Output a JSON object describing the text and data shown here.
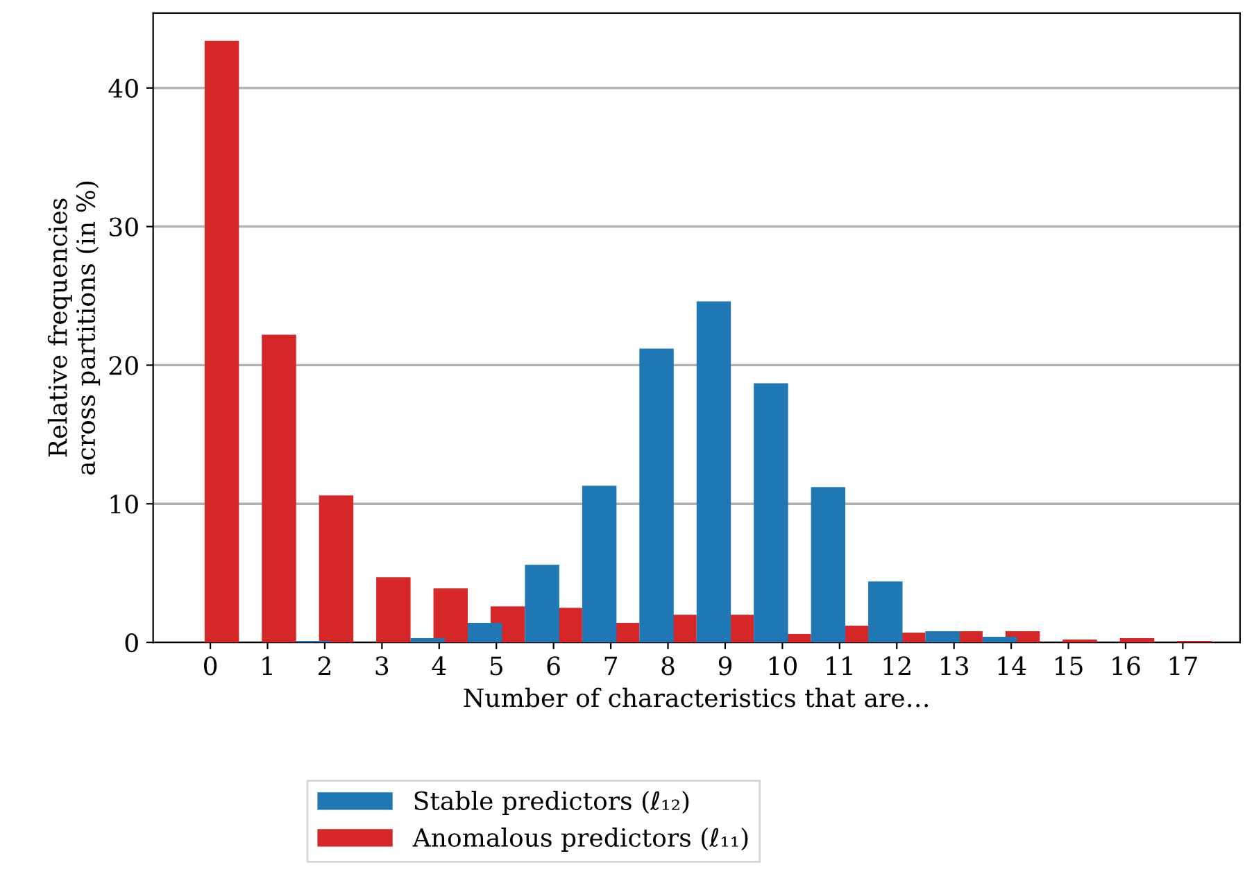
{
  "chart_data": {
    "type": "bar",
    "xlabel": "Number of characteristics that are…",
    "ylabel": "Relative frequencies\nacross partitions (in %)",
    "categories": [
      "0",
      "1",
      "2",
      "3",
      "4",
      "5",
      "6",
      "7",
      "8",
      "9",
      "10",
      "11",
      "12",
      "13",
      "14",
      "15",
      "16",
      "17"
    ],
    "series": [
      {
        "name": "Stable predictors (ℓ₁₂)",
        "color": "#1f77b4",
        "values": [
          0,
          0,
          0.1,
          0,
          0.3,
          1.4,
          5.6,
          11.3,
          21.2,
          24.6,
          18.7,
          11.2,
          4.4,
          0.8,
          0.4,
          0,
          0,
          0
        ]
      },
      {
        "name": "Anomalous predictors (ℓ₁₁)",
        "color": "#d62728",
        "values": [
          43.4,
          22.2,
          10.6,
          4.7,
          3.9,
          2.6,
          2.5,
          1.4,
          2.0,
          2.0,
          0.6,
          1.2,
          0.7,
          0.8,
          0.8,
          0.2,
          0.3,
          0.1
        ]
      }
    ],
    "ylim": [
      0,
      45.4
    ],
    "yticks": [
      0,
      10,
      20,
      30,
      40
    ],
    "grid": "y",
    "legend": "bottom"
  }
}
